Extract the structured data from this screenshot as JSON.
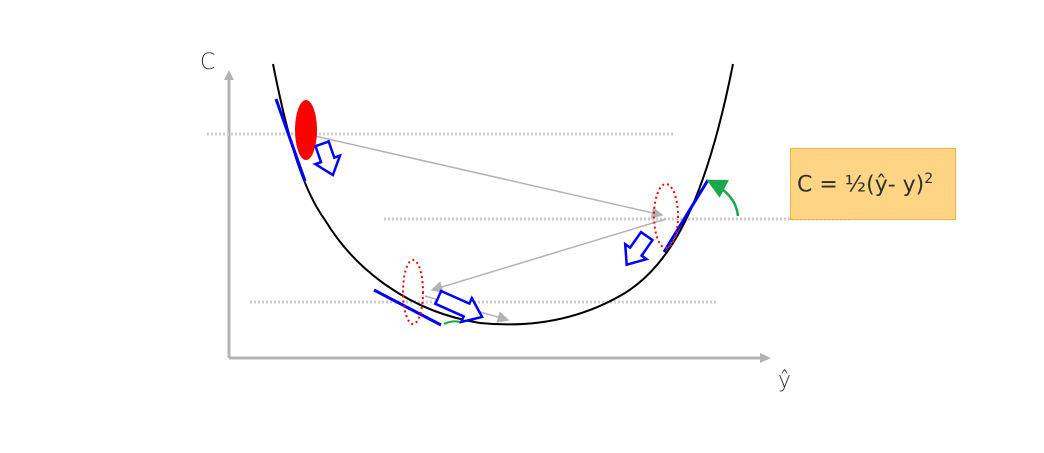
{
  "axes": {
    "y_label": "C",
    "x_label": "ŷ"
  },
  "formula": {
    "prefix": "C = ½(ŷ- y)",
    "exponent": "2"
  },
  "colors": {
    "curve": "#000000",
    "tangent": "#0000ff",
    "step_marker": "#ff0000",
    "arrow_outline": "#0000ff",
    "angle_arrow": "#1aa84a",
    "jump_line": "#b3b3b3",
    "axis": "#b3b3b3",
    "formula_fill": "#fdd585"
  },
  "icons": [
    "descent-arrow-icon",
    "angle-arrow-icon",
    "dotted-ellipse-marker"
  ]
}
